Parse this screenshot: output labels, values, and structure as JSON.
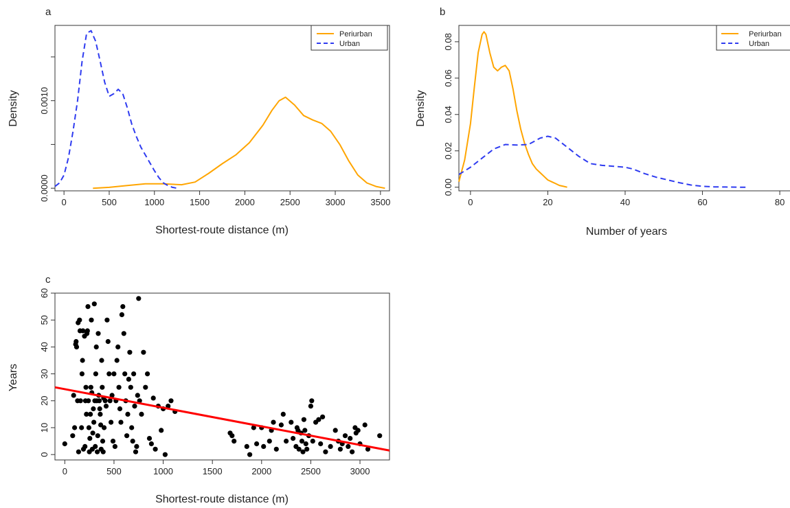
{
  "chart_data": [
    {
      "panel": "a",
      "type": "line",
      "xlabel": "Shortest-route distance (m)",
      "ylabel": "Density",
      "xlim": [
        -100,
        3600
      ],
      "ylim": [
        -3e-05,
        0.00186
      ],
      "x_ticks": [
        0,
        500,
        1000,
        1500,
        2000,
        2500,
        3000,
        3500
      ],
      "y_ticks": [
        0,
        0.0005,
        0.001,
        0.0015
      ],
      "y_tick_labels": [
        "0.0000",
        "",
        "0.0010",
        ""
      ],
      "legend": {
        "position": "top-right"
      },
      "series": [
        {
          "name": "Periurban",
          "color": "#FFA500",
          "dash": "solid",
          "x": [
            320,
            500,
            700,
            900,
            1100,
            1300,
            1450,
            1600,
            1750,
            1900,
            2050,
            2200,
            2300,
            2380,
            2450,
            2550,
            2650,
            2750,
            2850,
            2950,
            3050,
            3150,
            3250,
            3350,
            3450,
            3550
          ],
          "y": [
            0.0,
            1e-05,
            3e-05,
            5e-05,
            5e-05,
            4e-05,
            7e-05,
            0.00017,
            0.00028,
            0.00038,
            0.00052,
            0.00072,
            0.00089,
            0.001,
            0.00104,
            0.00095,
            0.00083,
            0.00078,
            0.00074,
            0.00065,
            0.0005,
            0.00031,
            0.00015,
            6e-05,
            2e-05,
            0.0
          ]
        },
        {
          "name": "Urban",
          "color": "#2E3BF0",
          "dash": "dashed",
          "x": [
            -100,
            -50,
            0,
            50,
            100,
            150,
            200,
            250,
            300,
            350,
            400,
            450,
            500,
            550,
            600,
            650,
            700,
            750,
            800,
            850,
            900,
            950,
            1000,
            1050,
            1100,
            1150,
            1200,
            1250
          ],
          "y": [
            2e-05,
            6e-05,
            0.00015,
            0.00035,
            0.00065,
            0.001,
            0.00145,
            0.00177,
            0.0018,
            0.00168,
            0.00145,
            0.00121,
            0.00105,
            0.00108,
            0.00113,
            0.00108,
            0.00092,
            0.00073,
            0.00059,
            0.00047,
            0.00038,
            0.00029,
            0.0002,
            0.00012,
            6e-05,
            3e-05,
            1e-05,
            0.0
          ]
        }
      ]
    },
    {
      "panel": "b",
      "type": "line",
      "xlabel": "Number of years",
      "ylabel": "Density",
      "xlim": [
        -3,
        83
      ],
      "ylim": [
        -0.002,
        0.089
      ],
      "x_ticks": [
        0,
        20,
        40,
        60,
        80
      ],
      "y_ticks": [
        0,
        0.02,
        0.04,
        0.06,
        0.08
      ],
      "y_tick_labels": [
        "0.00",
        "0.02",
        "0.04",
        "0.06",
        "0.08"
      ],
      "legend": {
        "position": "top-right"
      },
      "series": [
        {
          "name": "Periurban",
          "color": "#FFA500",
          "dash": "solid",
          "x": [
            -3,
            -1.5,
            0,
            1,
            2,
            3,
            3.5,
            4,
            5,
            6,
            7,
            8,
            9,
            10,
            11,
            12,
            13,
            14,
            15,
            16,
            17,
            18,
            19,
            20,
            21,
            22,
            23,
            24,
            25
          ],
          "y": [
            0.003,
            0.015,
            0.035,
            0.055,
            0.074,
            0.084,
            0.0855,
            0.084,
            0.074,
            0.066,
            0.064,
            0.066,
            0.067,
            0.064,
            0.054,
            0.042,
            0.032,
            0.024,
            0.018,
            0.013,
            0.01,
            0.008,
            0.006,
            0.004,
            0.003,
            0.002,
            0.001,
            0.0005,
            0.0
          ]
        },
        {
          "name": "Urban",
          "color": "#2E3BF0",
          "dash": "dashed",
          "x": [
            -3,
            0,
            3,
            6,
            9,
            12,
            15,
            18,
            20,
            22,
            25,
            28,
            31,
            34,
            37,
            40,
            42,
            45,
            48,
            51,
            54,
            57,
            60,
            63,
            66,
            69,
            72
          ],
          "y": [
            0.007,
            0.011,
            0.016,
            0.021,
            0.0235,
            0.0232,
            0.0235,
            0.027,
            0.028,
            0.027,
            0.022,
            0.017,
            0.013,
            0.012,
            0.0115,
            0.011,
            0.01,
            0.0075,
            0.0055,
            0.004,
            0.0025,
            0.0012,
            0.0005,
            0.0002,
            0.0001,
            0.0,
            0.0
          ]
        }
      ]
    },
    {
      "panel": "c",
      "type": "scatter",
      "xlabel": "Shortest-route distance (m)",
      "ylabel": "Years",
      "xlim": [
        -100,
        3300
      ],
      "ylim": [
        -2,
        60
      ],
      "x_ticks": [
        0,
        500,
        1000,
        1500,
        2000,
        2500,
        3000
      ],
      "y_ticks": [
        0,
        10,
        20,
        30,
        40,
        50,
        60
      ],
      "regression_line": {
        "color": "#FF0000",
        "x": [
          -100,
          3300
        ],
        "y": [
          25,
          1.5
        ]
      },
      "points": [
        [
          0,
          4
        ],
        [
          80,
          7
        ],
        [
          90,
          22
        ],
        [
          100,
          10
        ],
        [
          110,
          41
        ],
        [
          115,
          42
        ],
        [
          120,
          40
        ],
        [
          130,
          20
        ],
        [
          135,
          49
        ],
        [
          140,
          1
        ],
        [
          150,
          50
        ],
        [
          155,
          46
        ],
        [
          160,
          20
        ],
        [
          170,
          10
        ],
        [
          175,
          30
        ],
        [
          180,
          35
        ],
        [
          185,
          46
        ],
        [
          190,
          2
        ],
        [
          200,
          44
        ],
        [
          205,
          3
        ],
        [
          210,
          20
        ],
        [
          215,
          25
        ],
        [
          220,
          15
        ],
        [
          225,
          45
        ],
        [
          230,
          46
        ],
        [
          235,
          55
        ],
        [
          240,
          20
        ],
        [
          245,
          10
        ],
        [
          250,
          1
        ],
        [
          255,
          6
        ],
        [
          260,
          15
        ],
        [
          265,
          25
        ],
        [
          270,
          50
        ],
        [
          275,
          23
        ],
        [
          280,
          2
        ],
        [
          285,
          8
        ],
        [
          290,
          17
        ],
        [
          295,
          12
        ],
        [
          300,
          56
        ],
        [
          305,
          20
        ],
        [
          310,
          3
        ],
        [
          315,
          30
        ],
        [
          320,
          40
        ],
        [
          325,
          20
        ],
        [
          330,
          1
        ],
        [
          335,
          7
        ],
        [
          340,
          45
        ],
        [
          345,
          22
        ],
        [
          350,
          20
        ],
        [
          355,
          17
        ],
        [
          360,
          15
        ],
        [
          365,
          11
        ],
        [
          370,
          2
        ],
        [
          375,
          35
        ],
        [
          380,
          25
        ],
        [
          385,
          5
        ],
        [
          390,
          1
        ],
        [
          395,
          21
        ],
        [
          400,
          10
        ],
        [
          410,
          20
        ],
        [
          420,
          18
        ],
        [
          430,
          50
        ],
        [
          440,
          42
        ],
        [
          450,
          30
        ],
        [
          460,
          20
        ],
        [
          470,
          12
        ],
        [
          480,
          22
        ],
        [
          490,
          5
        ],
        [
          500,
          30
        ],
        [
          510,
          3
        ],
        [
          520,
          20
        ],
        [
          530,
          35
        ],
        [
          540,
          40
        ],
        [
          550,
          25
        ],
        [
          560,
          17
        ],
        [
          570,
          12
        ],
        [
          580,
          52
        ],
        [
          590,
          55
        ],
        [
          600,
          45
        ],
        [
          610,
          30
        ],
        [
          620,
          20
        ],
        [
          630,
          7
        ],
        [
          640,
          15
        ],
        [
          650,
          28
        ],
        [
          660,
          38
        ],
        [
          670,
          25
        ],
        [
          680,
          10
        ],
        [
          690,
          5
        ],
        [
          700,
          30
        ],
        [
          710,
          18
        ],
        [
          720,
          1
        ],
        [
          730,
          3
        ],
        [
          740,
          22
        ],
        [
          750,
          58
        ],
        [
          760,
          20
        ],
        [
          780,
          15
        ],
        [
          800,
          38
        ],
        [
          820,
          25
        ],
        [
          840,
          30
        ],
        [
          860,
          6
        ],
        [
          880,
          4
        ],
        [
          900,
          21
        ],
        [
          920,
          2
        ],
        [
          950,
          18
        ],
        [
          980,
          9
        ],
        [
          1000,
          17
        ],
        [
          1020,
          0
        ],
        [
          1050,
          18
        ],
        [
          1080,
          20
        ],
        [
          1120,
          16
        ],
        [
          1680,
          8
        ],
        [
          1700,
          7
        ],
        [
          1720,
          5
        ],
        [
          1850,
          3
        ],
        [
          1880,
          0
        ],
        [
          1920,
          10
        ],
        [
          1950,
          4
        ],
        [
          2000,
          10
        ],
        [
          2020,
          3
        ],
        [
          2080,
          5
        ],
        [
          2100,
          9
        ],
        [
          2120,
          12
        ],
        [
          2150,
          2
        ],
        [
          2200,
          11
        ],
        [
          2220,
          15
        ],
        [
          2250,
          5
        ],
        [
          2300,
          12
        ],
        [
          2320,
          6
        ],
        [
          2350,
          3
        ],
        [
          2360,
          10
        ],
        [
          2370,
          9
        ],
        [
          2380,
          2
        ],
        [
          2400,
          8
        ],
        [
          2410,
          5
        ],
        [
          2420,
          1
        ],
        [
          2430,
          13
        ],
        [
          2440,
          9
        ],
        [
          2450,
          4
        ],
        [
          2460,
          2
        ],
        [
          2480,
          7
        ],
        [
          2500,
          18
        ],
        [
          2510,
          20
        ],
        [
          2520,
          5
        ],
        [
          2550,
          12
        ],
        [
          2580,
          13
        ],
        [
          2600,
          4
        ],
        [
          2620,
          14
        ],
        [
          2650,
          1
        ],
        [
          2700,
          3
        ],
        [
          2750,
          9
        ],
        [
          2780,
          5
        ],
        [
          2800,
          2
        ],
        [
          2820,
          4
        ],
        [
          2850,
          7
        ],
        [
          2880,
          3
        ],
        [
          2900,
          6
        ],
        [
          2920,
          1
        ],
        [
          2950,
          10
        ],
        [
          2960,
          8
        ],
        [
          2980,
          9
        ],
        [
          3000,
          4
        ],
        [
          3050,
          11
        ],
        [
          3080,
          2
        ],
        [
          3200,
          7
        ]
      ]
    }
  ],
  "panels": [
    {
      "letter": "a",
      "xlabel": "Shortest-route distance (m)",
      "ylabel": "Density",
      "legend": [
        "Periurban",
        "Urban"
      ]
    },
    {
      "letter": "b",
      "xlabel": "Number of years",
      "ylabel": "Density",
      "legend": [
        "Periurban",
        "Urban"
      ]
    },
    {
      "letter": "c",
      "xlabel": "Shortest-route distance (m)",
      "ylabel": "Years"
    }
  ]
}
